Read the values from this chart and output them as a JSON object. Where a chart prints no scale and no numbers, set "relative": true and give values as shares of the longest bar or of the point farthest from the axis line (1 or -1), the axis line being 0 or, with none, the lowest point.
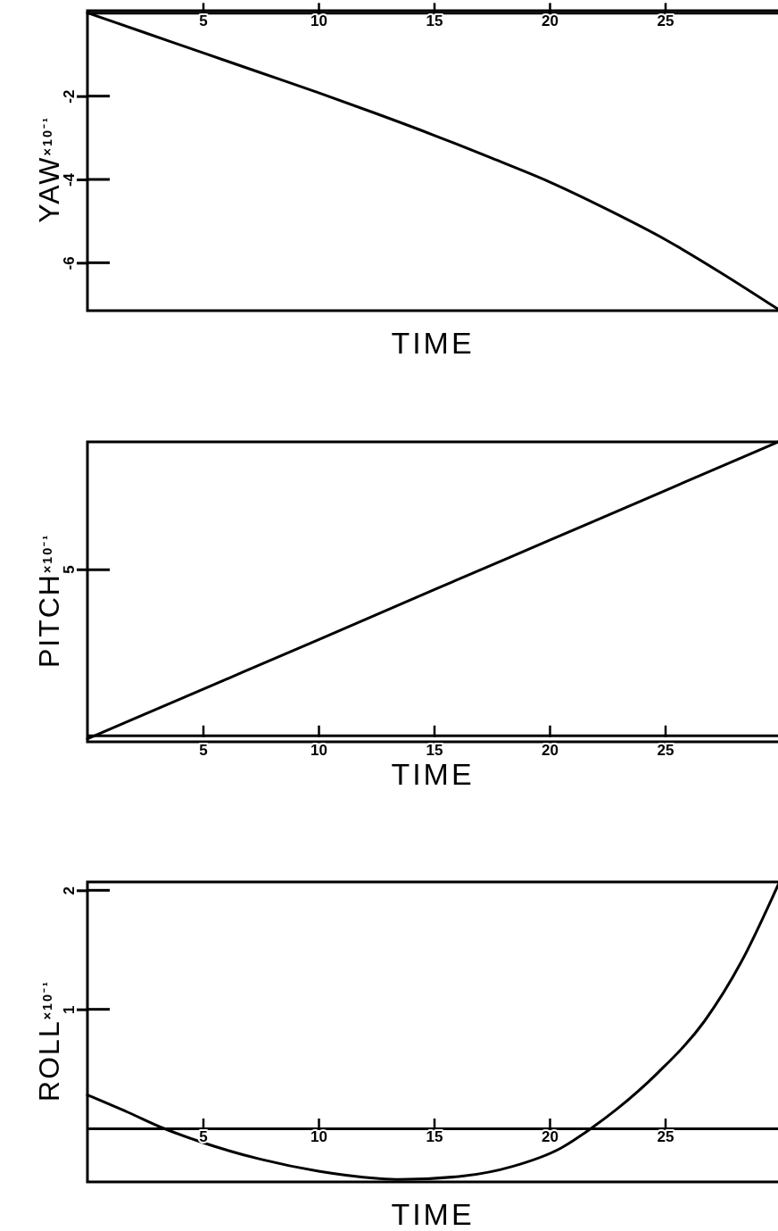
{
  "chart_data": [
    {
      "type": "line",
      "xlabel": "TIME",
      "ylabel": "YAW$^{×10⁻¹}$",
      "xlim": [
        0,
        30
      ],
      "xticks": [
        5,
        10,
        15,
        20,
        25
      ],
      "ylim": [
        -7.15,
        0.05
      ],
      "yticks": [
        -2,
        -4,
        -6
      ],
      "series": [
        {
          "color": "#000000",
          "x": [
            0,
            2.5,
            5,
            7.5,
            10,
            12.5,
            15,
            17.5,
            20,
            22.5,
            25,
            27.5,
            29.9
          ],
          "values": [
            0,
            -0.48,
            -0.96,
            -1.44,
            -1.92,
            -2.42,
            -2.94,
            -3.49,
            -4.06,
            -4.72,
            -5.44,
            -6.27,
            -7.12
          ]
        }
      ]
    },
    {
      "type": "line",
      "xlabel": "TIME",
      "ylabel": "PITCH$^{×10⁻¹}$",
      "xlim": [
        0,
        30
      ],
      "xticks": [
        5,
        10,
        15,
        20,
        25
      ],
      "relative": true,
      "annotations": [
        "5"
      ],
      "series": [
        {
          "color": "#000000",
          "x": [
            0,
            5,
            10,
            15,
            20,
            25,
            29.9
          ],
          "values": [
            -0.012,
            0.157,
            0.326,
            0.496,
            0.665,
            0.834,
            1
          ]
        }
      ]
    },
    {
      "type": "line",
      "xlabel": "TIME",
      "ylabel": "ROLL$^{×10⁻¹}$",
      "xlim": [
        0,
        30
      ],
      "xticks": [
        5,
        10,
        15,
        20,
        25
      ],
      "ylim": [
        -0.45,
        2.07
      ],
      "yticks": [
        1,
        2
      ],
      "series": [
        {
          "color": "#000000",
          "x": [
            0,
            1.75,
            3.3,
            5,
            7.5,
            10,
            12.5,
            13.5,
            16.3,
            18.4,
            20.5,
            21.8,
            22.9,
            24.7,
            26.7,
            28.3,
            29.9
          ],
          "values": [
            0.28,
            0.135,
            0,
            -0.12,
            -0.26,
            -0.36,
            -0.42,
            -0.43,
            -0.4,
            -0.32,
            -0.165,
            0,
            0.16,
            0.47,
            0.9,
            1.4,
            2.05
          ]
        }
      ]
    }
  ]
}
